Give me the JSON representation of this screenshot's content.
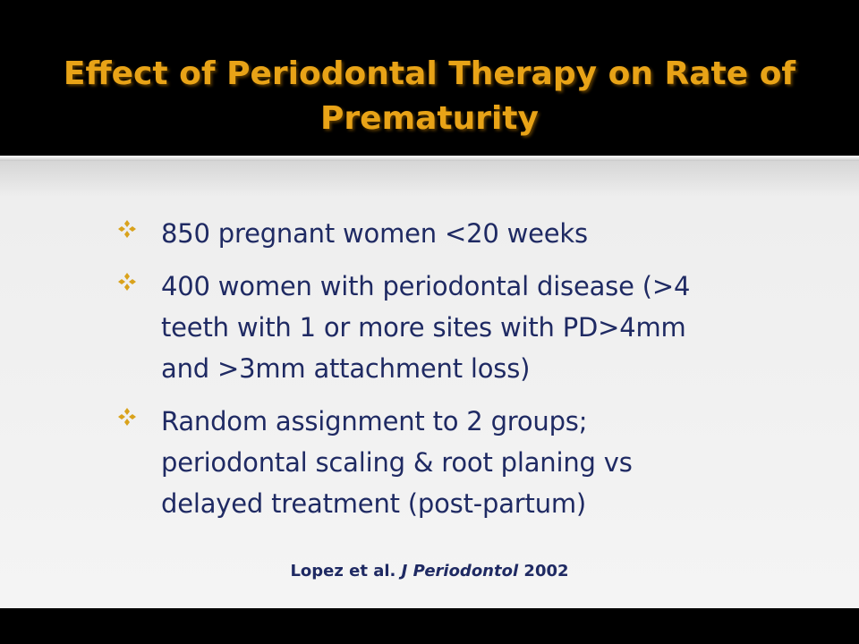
{
  "slide": {
    "title_lines": [
      "Effect of Periodontal Therapy on Rate of",
      "Prematurity"
    ],
    "bullets": [
      {
        "lines": [
          "850 pregnant women <20 weeks"
        ]
      },
      {
        "lines": [
          "400 women with periodontal disease (>4",
          "teeth with 1 or more sites with PD>4mm",
          "and >3mm attachment loss)"
        ]
      },
      {
        "lines": [
          "Random assignment to 2 groups;",
          "periodontal scaling & root planing vs",
          "delayed treatment (post-partum)"
        ]
      }
    ],
    "citation": {
      "authors": "Lopez et al.",
      "journal": "J Periodontol",
      "year": "2002"
    }
  },
  "colors": {
    "title": "#e8a317",
    "body_text": "#1f2a63",
    "bullet": "#d9a21b",
    "background_top": "#000000",
    "content_background": "#f4f4f4"
  },
  "icons": {
    "bullet": "four-diamond-bullet-icon"
  }
}
